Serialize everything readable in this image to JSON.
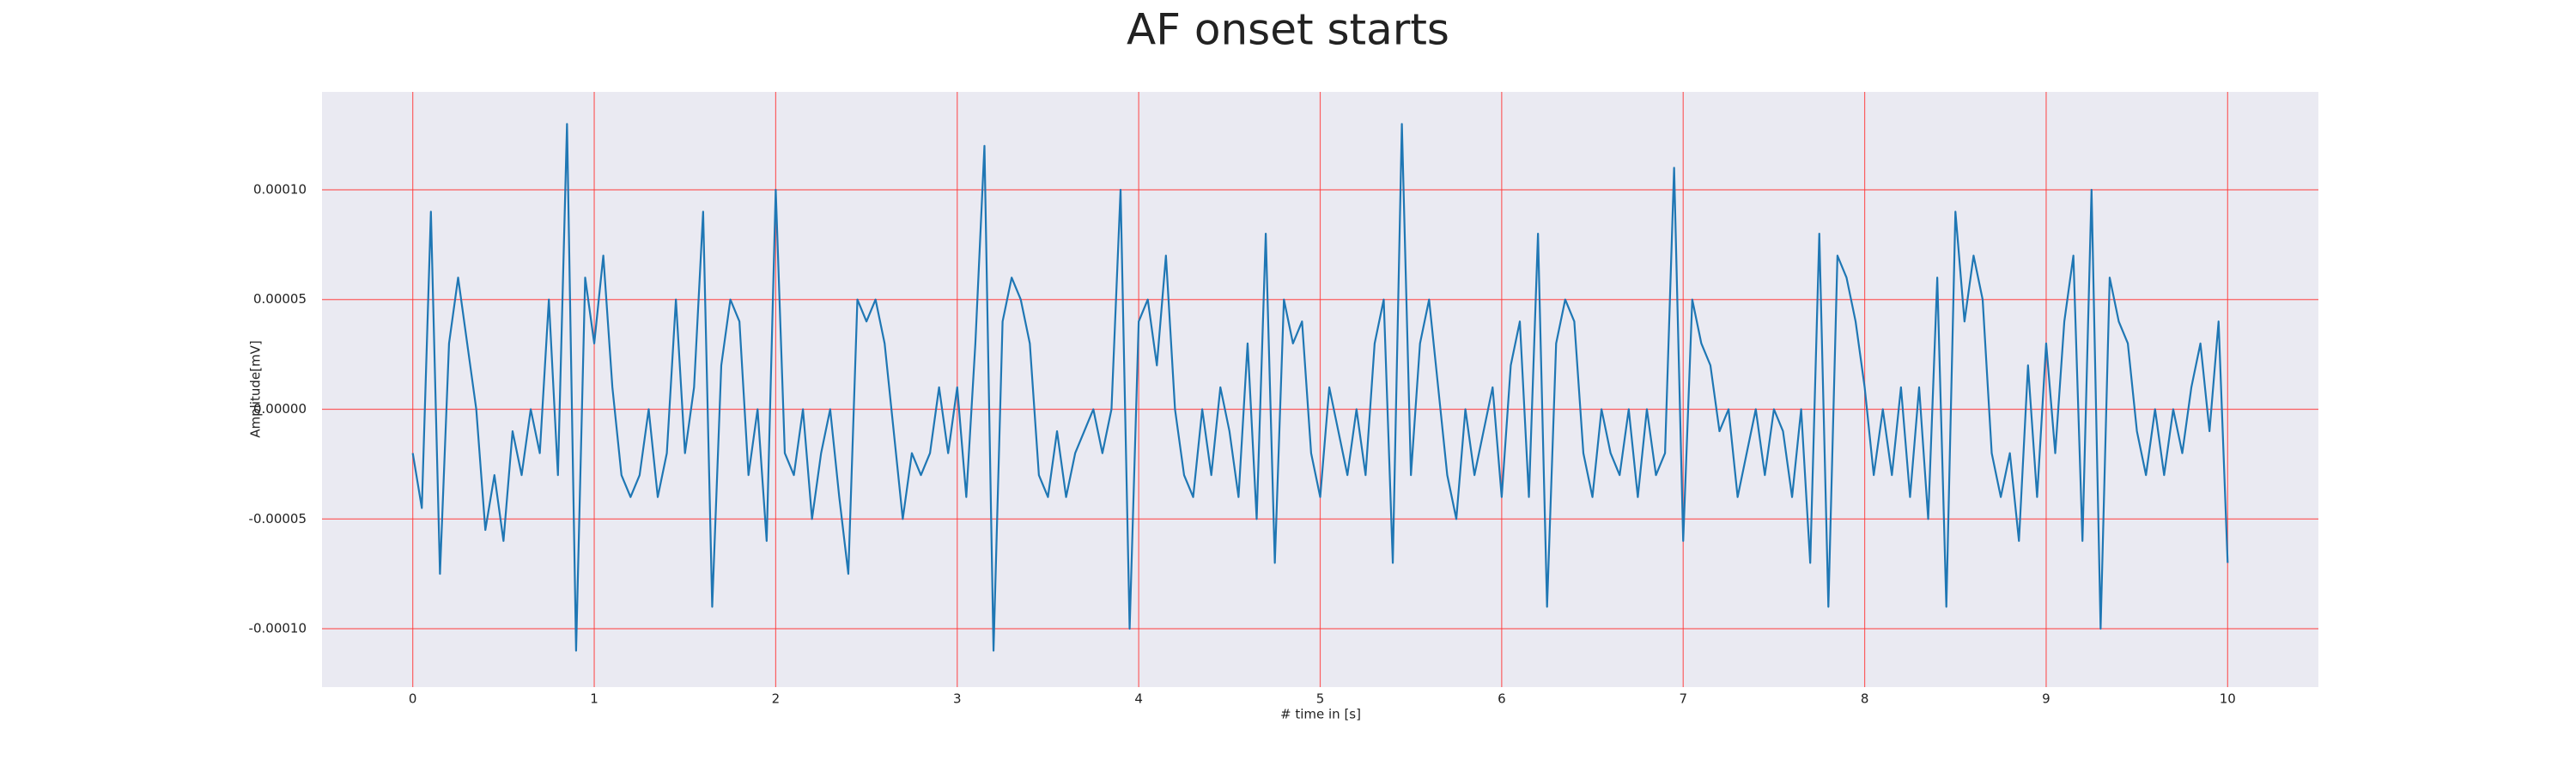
{
  "chart_data": {
    "type": "line",
    "title": "AF onset starts",
    "x_label": "# time in [s]",
    "y_label": "Amplitude[mV]",
    "xlim": [
      -0.5,
      10.5
    ],
    "ylim": [
      -0.0001266,
      0.0001446
    ],
    "xticks": [
      0,
      1,
      2,
      3,
      4,
      5,
      6,
      7,
      8,
      9,
      10
    ],
    "yticks": [
      {
        "value": -0.0001,
        "label": "-0.00010"
      },
      {
        "value": -5e-05,
        "label": "-0.00005"
      },
      {
        "value": 0,
        "label": "0.00000"
      },
      {
        "value": 5e-05,
        "label": "0.00005"
      },
      {
        "value": 0.0001,
        "label": "0.00010"
      }
    ],
    "grid": true,
    "grid_color": "#ff3b3b",
    "background": "#eaeaf2",
    "x": [
      0,
      0.05,
      0.1,
      0.15,
      0.2,
      0.25,
      0.3,
      0.35,
      0.4,
      0.45,
      0.5,
      0.55,
      0.6,
      0.65,
      0.7,
      0.75,
      0.8,
      0.85,
      0.9,
      0.95,
      1,
      1.05,
      1.1,
      1.15,
      1.2,
      1.25,
      1.3,
      1.35,
      1.4,
      1.45,
      1.5,
      1.55,
      1.6,
      1.65,
      1.7,
      1.75,
      1.8,
      1.85,
      1.9,
      1.95,
      2,
      2.05,
      2.1,
      2.15,
      2.2,
      2.25,
      2.3,
      2.35,
      2.4,
      2.45,
      2.5,
      2.55,
      2.6,
      2.65,
      2.7,
      2.75,
      2.8,
      2.85,
      2.9,
      2.95,
      3,
      3.05,
      3.1,
      3.15,
      3.2,
      3.25,
      3.3,
      3.35,
      3.4,
      3.45,
      3.5,
      3.55,
      3.6,
      3.65,
      3.7,
      3.75,
      3.8,
      3.85,
      3.9,
      3.95,
      4,
      4.05,
      4.1,
      4.15,
      4.2,
      4.25,
      4.3,
      4.35,
      4.4,
      4.45,
      4.5,
      4.55,
      4.6,
      4.65,
      4.7,
      4.75,
      4.8,
      4.85,
      4.9,
      4.95,
      5,
      5.05,
      5.1,
      5.15,
      5.2,
      5.25,
      5.3,
      5.35,
      5.4,
      5.45,
      5.5,
      5.55,
      5.6,
      5.65,
      5.7,
      5.75,
      5.8,
      5.85,
      5.9,
      5.95,
      6,
      6.05,
      6.1,
      6.15,
      6.2,
      6.25,
      6.3,
      6.35,
      6.4,
      6.45,
      6.5,
      6.55,
      6.6,
      6.65,
      6.7,
      6.75,
      6.8,
      6.85,
      6.9,
      6.95,
      7,
      7.05,
      7.1,
      7.15,
      7.2,
      7.25,
      7.3,
      7.35,
      7.4,
      7.45,
      7.5,
      7.55,
      7.6,
      7.65,
      7.7,
      7.75,
      7.8,
      7.85,
      7.9,
      7.95,
      8,
      8.05,
      8.1,
      8.15,
      8.2,
      8.25,
      8.3,
      8.35,
      8.4,
      8.45,
      8.5,
      8.55,
      8.6,
      8.65,
      8.7,
      8.75,
      8.8,
      8.85,
      8.9,
      8.95,
      9,
      9.05,
      9.1,
      9.15,
      9.2,
      9.25,
      9.3,
      9.35,
      9.4,
      9.45,
      9.5,
      9.55,
      9.6,
      9.65,
      9.7,
      9.75,
      9.8,
      9.85,
      9.9,
      9.95,
      10
    ],
    "series": [
      {
        "color": "#1f77b4",
        "values": [
          -2e-05,
          -4.5e-05,
          9e-05,
          -7.5e-05,
          3e-05,
          6e-05,
          3e-05,
          0,
          -5.5e-05,
          -3e-05,
          -6e-05,
          -1e-05,
          -3e-05,
          0,
          -2e-05,
          5e-05,
          -3e-05,
          0.00013,
          -0.00011,
          6e-05,
          3e-05,
          7e-05,
          1e-05,
          -3e-05,
          -4e-05,
          -3e-05,
          0,
          -4e-05,
          -2e-05,
          5e-05,
          -2e-05,
          1e-05,
          9e-05,
          -9e-05,
          2e-05,
          5e-05,
          4e-05,
          -3e-05,
          0,
          -6e-05,
          0.0001,
          -2e-05,
          -3e-05,
          0,
          -5e-05,
          -2e-05,
          0,
          -4e-05,
          -7.5e-05,
          5e-05,
          4e-05,
          5e-05,
          3e-05,
          -1e-05,
          -5e-05,
          -2e-05,
          -3e-05,
          -2e-05,
          1e-05,
          -2e-05,
          1e-05,
          -4e-05,
          3e-05,
          0.00012,
          -0.00011,
          4e-05,
          6e-05,
          5e-05,
          3e-05,
          -3e-05,
          -4e-05,
          -1e-05,
          -4e-05,
          -2e-05,
          -1e-05,
          0,
          -2e-05,
          0,
          0.0001,
          -0.0001,
          4e-05,
          5e-05,
          2e-05,
          7e-05,
          0,
          -3e-05,
          -4e-05,
          0,
          -3e-05,
          1e-05,
          -1e-05,
          -4e-05,
          3e-05,
          -5e-05,
          8e-05,
          -7e-05,
          5e-05,
          3e-05,
          4e-05,
          -2e-05,
          -4e-05,
          1e-05,
          -1e-05,
          -3e-05,
          0,
          -3e-05,
          3e-05,
          5e-05,
          -7e-05,
          0.00013,
          -3e-05,
          3e-05,
          5e-05,
          1e-05,
          -3e-05,
          -5e-05,
          0,
          -3e-05,
          -1e-05,
          1e-05,
          -4e-05,
          2e-05,
          4e-05,
          -4e-05,
          8e-05,
          -9e-05,
          3e-05,
          5e-05,
          4e-05,
          -2e-05,
          -4e-05,
          0,
          -2e-05,
          -3e-05,
          0,
          -4e-05,
          0,
          -3e-05,
          -2e-05,
          0.00011,
          -6e-05,
          5e-05,
          3e-05,
          2e-05,
          -1e-05,
          0,
          -4e-05,
          -2e-05,
          0,
          -3e-05,
          0,
          -1e-05,
          -4e-05,
          0,
          -7e-05,
          8e-05,
          -9e-05,
          7e-05,
          6e-05,
          4e-05,
          1e-05,
          -3e-05,
          0,
          -3e-05,
          1e-05,
          -4e-05,
          1e-05,
          -5e-05,
          6e-05,
          -9e-05,
          9e-05,
          4e-05,
          7e-05,
          5e-05,
          -2e-05,
          -4e-05,
          -2e-05,
          -6e-05,
          2e-05,
          -4e-05,
          3e-05,
          -2e-05,
          4e-05,
          7e-05,
          -6e-05,
          0.0001,
          -0.0001,
          6e-05,
          4e-05,
          3e-05,
          -1e-05,
          -3e-05,
          0,
          -3e-05,
          0,
          -2e-05,
          1e-05,
          3e-05,
          -1e-05,
          4e-05,
          -7e-05
        ]
      }
    ]
  }
}
